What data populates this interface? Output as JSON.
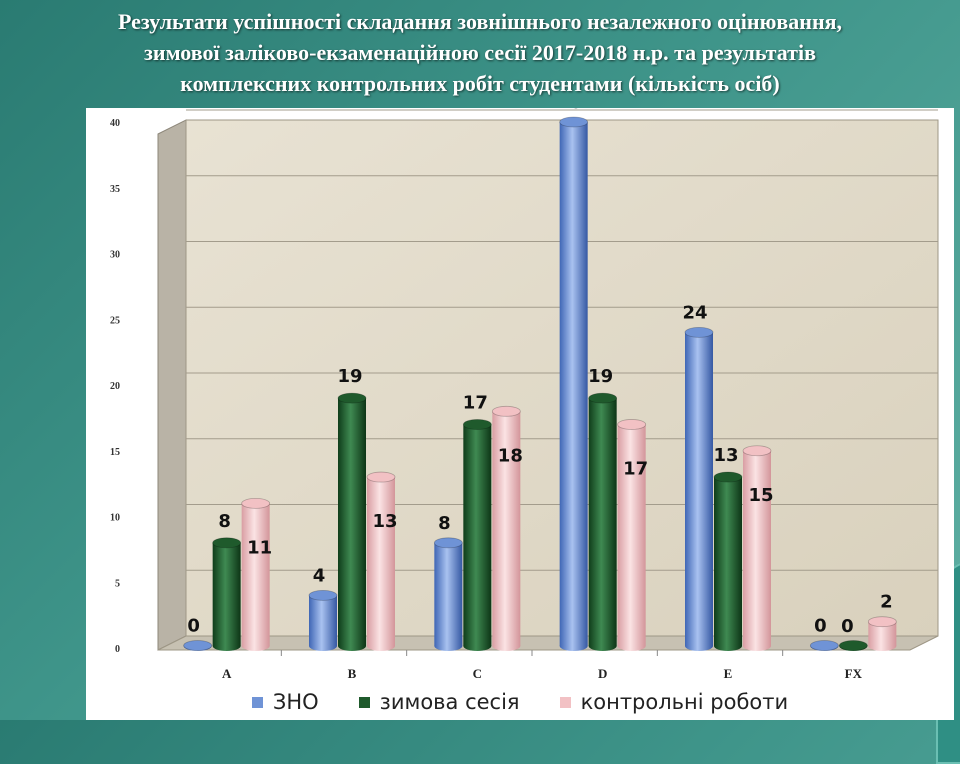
{
  "slide": {
    "title_lines": [
      "Результати успішності складання зовнішнього незалежного оцінювання,",
      "зимової заліково-екзаменаційною сесії 2017-2018 н.р. та результатів",
      "комплексних контрольних робіт студентами  (кількість осіб)"
    ]
  },
  "chart_data": {
    "type": "bar",
    "categories": [
      "A",
      "B",
      "C",
      "D",
      "E",
      "FX"
    ],
    "series": [
      {
        "name": "ЗНО",
        "values": [
          0,
          4,
          8,
          40,
          24,
          0
        ],
        "color": "#6f93d6"
      },
      {
        "name": "зимова сесія",
        "values": [
          8,
          19,
          17,
          19,
          13,
          0
        ],
        "color": "#1f5a2c"
      },
      {
        "name": "контрольні роботи",
        "values": [
          11,
          13,
          18,
          17,
          15,
          2
        ],
        "color": "#f2c1c4"
      }
    ],
    "yticks": [
      "0",
      "5",
      "10",
      "15",
      "20",
      "25",
      "30",
      "35",
      "40"
    ],
    "ylim": [
      0,
      40
    ],
    "grid": true,
    "legend_position": "bottom",
    "value_labels": [
      [
        "0",
        "8",
        "11"
      ],
      [
        "4",
        "19",
        "13"
      ],
      [
        "8",
        "17",
        "18"
      ],
      [
        "40",
        "19",
        "17"
      ],
      [
        "24",
        "13",
        "15"
      ],
      [
        "0",
        "0",
        "2"
      ]
    ]
  }
}
